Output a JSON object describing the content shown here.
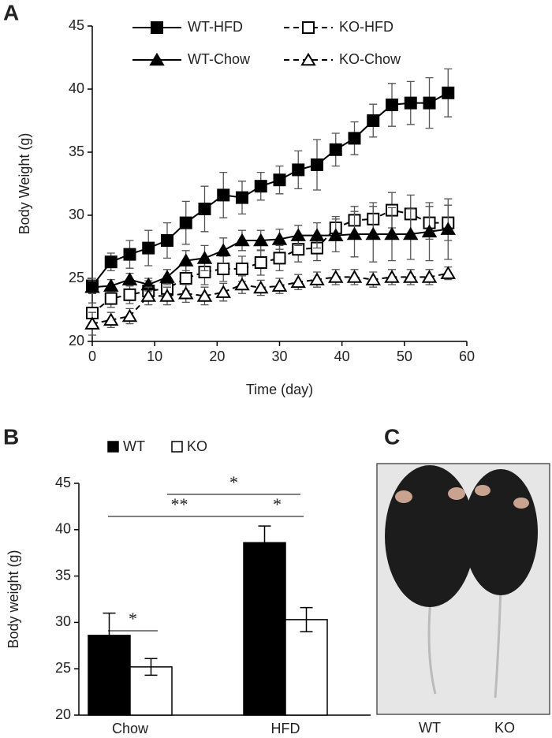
{
  "chart_data": [
    {
      "panel": "A",
      "type": "line",
      "xlabel": "Time (day)",
      "ylabel": "Body Weight (g)",
      "x": [
        0,
        3,
        6,
        9,
        12,
        15,
        18,
        21,
        24,
        27,
        30,
        33,
        36,
        39,
        42,
        45,
        48,
        51,
        54,
        57
      ],
      "xlim": [
        0,
        60
      ],
      "xticks": [
        0,
        10,
        20,
        30,
        40,
        50,
        60
      ],
      "ylim": [
        20,
        45
      ],
      "yticks": [
        20,
        25,
        30,
        35,
        40,
        45
      ],
      "series": [
        {
          "name": "WT-HFD",
          "color": "#000000",
          "marker": "square",
          "filled": true,
          "dashed": false,
          "values": [
            24.4,
            26.3,
            26.9,
            27.4,
            28.0,
            29.4,
            30.5,
            31.6,
            31.4,
            32.3,
            32.8,
            33.6,
            34.0,
            35.2,
            36.1,
            37.5,
            38.75,
            38.9,
            38.9,
            39.7
          ],
          "errors": [
            0.6,
            0.7,
            1.1,
            1.4,
            1.4,
            1.7,
            1.8,
            1.8,
            1.3,
            1.1,
            1.1,
            1.5,
            2.0,
            1.3,
            1.3,
            1.3,
            1.7,
            1.7,
            2.0,
            1.9
          ]
        },
        {
          "name": "KO-HFD",
          "color": "#000000",
          "marker": "square",
          "filled": false,
          "dashed": true,
          "values": [
            22.25,
            23.4,
            23.7,
            24.0,
            24.2,
            25.0,
            25.5,
            25.75,
            25.75,
            26.25,
            26.6,
            27.3,
            27.4,
            29.0,
            29.6,
            29.7,
            30.4,
            30.1,
            29.4,
            29.4
          ],
          "errors": [
            0.8,
            0.7,
            0.7,
            0.8,
            0.8,
            1.0,
            1.0,
            1.0,
            1.0,
            1.0,
            1.0,
            1.0,
            1.0,
            0.9,
            1.1,
            1.3,
            1.4,
            1.5,
            1.3,
            1.4
          ]
        },
        {
          "name": "WT-Chow",
          "color": "#000000",
          "marker": "triangle",
          "filled": true,
          "dashed": false,
          "values": [
            24.3,
            24.4,
            24.9,
            24.5,
            25.1,
            26.4,
            26.6,
            27.2,
            28.0,
            28.0,
            28.1,
            28.4,
            28.4,
            28.4,
            28.5,
            28.5,
            28.5,
            28.5,
            28.7,
            28.9
          ],
          "errors": [
            0.5,
            0.5,
            0.5,
            0.5,
            0.6,
            0.8,
            1.0,
            1.0,
            0.8,
            0.8,
            0.8,
            0.8,
            1.0,
            1.3,
            1.8,
            2.2,
            2.1,
            2.0,
            2.3,
            2.4
          ]
        },
        {
          "name": "KO-Chow",
          "color": "#000000",
          "marker": "triangle",
          "filled": false,
          "dashed": true,
          "values": [
            21.4,
            21.7,
            22.0,
            23.6,
            23.6,
            23.8,
            23.6,
            23.9,
            24.5,
            24.25,
            24.4,
            24.7,
            24.9,
            25.1,
            25.1,
            24.9,
            25.1,
            25.1,
            25.1,
            25.4
          ],
          "errors": [
            0.9,
            0.6,
            0.6,
            0.7,
            0.7,
            0.7,
            0.7,
            0.7,
            0.7,
            0.6,
            0.6,
            0.6,
            0.6,
            0.6,
            0.6,
            0.6,
            0.6,
            0.6,
            0.6,
            0.5
          ]
        }
      ]
    },
    {
      "panel": "B",
      "type": "bar",
      "ylabel": "Body weight (g)",
      "categories": [
        "Chow",
        "HFD"
      ],
      "ylim": [
        20,
        45
      ],
      "yticks": [
        20,
        25,
        30,
        35,
        40,
        45
      ],
      "series": [
        {
          "name": "WT",
          "color": "#000000",
          "values": [
            28.6,
            38.6
          ],
          "errors": [
            2.4,
            1.8
          ]
        },
        {
          "name": "KO",
          "color": "#ffffff",
          "values": [
            25.2,
            30.3
          ],
          "errors": [
            0.9,
            1.3
          ]
        }
      ],
      "annotations": [
        "*",
        "**",
        "*",
        "*"
      ]
    }
  ],
  "photo": {
    "panel": "C",
    "labels": [
      "WT",
      "KO"
    ]
  }
}
